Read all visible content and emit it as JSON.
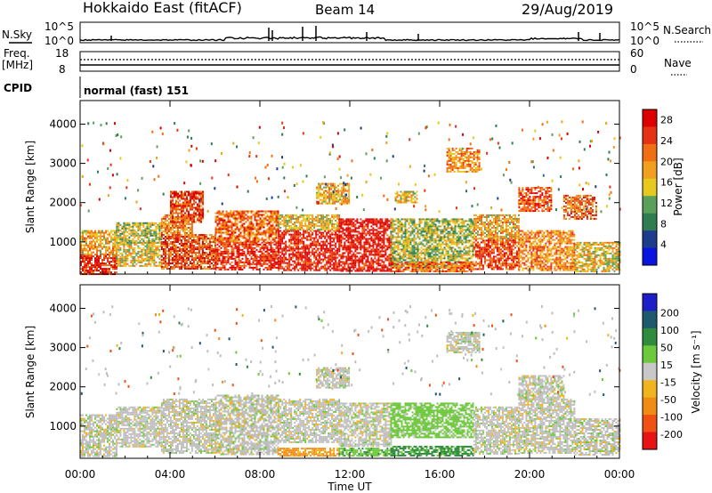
{
  "header": {
    "radar": "Hokkaido East (fitACF)",
    "beam": "Beam 14",
    "date": "29/Aug/2019"
  },
  "strips": {
    "nsky_label": "N.Sky",
    "nsky_ticks": [
      "10^5",
      "10^0"
    ],
    "nsearch_label": "N.Search",
    "freq_label_1": "Freq.",
    "freq_label_2": "[MHz]",
    "freq_ticks": [
      "18",
      "8"
    ],
    "nave_label": "Nave",
    "nave_ticks": [
      "60",
      "0"
    ],
    "cpid_label": "CPID",
    "cpid_text": "normal (fast) 151"
  },
  "colors": {
    "power_scale": [
      "#0a14e0",
      "#1e3c8c",
      "#2e7d52",
      "#5aa05a",
      "#e6c81e",
      "#f0a01e",
      "#f06e14",
      "#e63214",
      "#dc0000"
    ],
    "velocity_scale": [
      "#1e1ec8",
      "#1e5a6e",
      "#2e8c3c",
      "#6ec83c",
      "#c8c8c8",
      "#f0b41e",
      "#f08c14",
      "#f05014",
      "#e61414"
    ],
    "ground_scatter": "#bebebe"
  },
  "chart_data": [
    {
      "type": "heatmap",
      "name": "power",
      "xlabel": "",
      "ylabel": "Slant Range [km]",
      "x_ticks": [
        "00:00",
        "04:00",
        "08:00",
        "12:00",
        "16:00",
        "20:00",
        "00:00"
      ],
      "xlim_hours": [
        0,
        24
      ],
      "ylim_km": [
        180,
        4600
      ],
      "y_ticks": [
        1000,
        2000,
        3000,
        4000
      ],
      "colorbar": {
        "label": "Power [dB]",
        "ticks": [
          4,
          8,
          12,
          16,
          20,
          24,
          28
        ],
        "range": [
          0,
          30
        ]
      },
      "regions": [
        {
          "t": [
            0.0,
            1.6
          ],
          "r": [
            200,
            700
          ],
          "db": 26
        },
        {
          "t": [
            0.0,
            1.6
          ],
          "r": [
            700,
            1300
          ],
          "db": 18
        },
        {
          "t": [
            1.6,
            3.6
          ],
          "r": [
            400,
            1000
          ],
          "db": 16
        },
        {
          "t": [
            1.6,
            3.6
          ],
          "r": [
            1000,
            1500
          ],
          "db": 14
        },
        {
          "t": [
            3.6,
            6.0
          ],
          "r": [
            300,
            1200
          ],
          "db": 24
        },
        {
          "t": [
            3.6,
            5.0
          ],
          "r": [
            1200,
            1700
          ],
          "db": 20
        },
        {
          "t": [
            6.0,
            8.8
          ],
          "r": [
            300,
            1000
          ],
          "db": 26
        },
        {
          "t": [
            6.0,
            8.8
          ],
          "r": [
            1000,
            1800
          ],
          "db": 22
        },
        {
          "t": [
            8.8,
            11.5
          ],
          "r": [
            300,
            1300
          ],
          "db": 27
        },
        {
          "t": [
            8.8,
            11.5
          ],
          "r": [
            1300,
            1700
          ],
          "db": 16
        },
        {
          "t": [
            11.5,
            13.8
          ],
          "r": [
            250,
            1600
          ],
          "db": 28
        },
        {
          "t": [
            13.8,
            17.5
          ],
          "r": [
            350,
            1600
          ],
          "db": 14
        },
        {
          "t": [
            13.8,
            17.5
          ],
          "r": [
            250,
            500
          ],
          "db": 22
        },
        {
          "t": [
            17.5,
            19.5
          ],
          "r": [
            300,
            1100
          ],
          "db": 24
        },
        {
          "t": [
            17.5,
            19.5
          ],
          "r": [
            1100,
            1700
          ],
          "db": 18
        },
        {
          "t": [
            19.5,
            22.0
          ],
          "r": [
            300,
            1300
          ],
          "db": 20
        },
        {
          "t": [
            19.5,
            21.0
          ],
          "r": [
            1800,
            2400
          ],
          "db": 24
        },
        {
          "t": [
            22.0,
            24.0
          ],
          "r": [
            250,
            1000
          ],
          "db": 16
        },
        {
          "t": [
            21.5,
            23.0
          ],
          "r": [
            1600,
            2200
          ],
          "db": 22
        },
        {
          "t": [
            10.5,
            12.0
          ],
          "r": [
            2000,
            2500
          ],
          "db": 18
        },
        {
          "t": [
            16.3,
            17.8
          ],
          "r": [
            2800,
            3400
          ],
          "db": 20
        },
        {
          "t": [
            14.0,
            15.0
          ],
          "r": [
            2000,
            2300
          ],
          "db": 16
        },
        {
          "t": [
            4.0,
            5.5
          ],
          "r": [
            1500,
            2300
          ],
          "db": 24
        }
      ]
    },
    {
      "type": "heatmap",
      "name": "velocity",
      "xlabel": "Time UT",
      "ylabel": "Slant Range [km]",
      "x_ticks": [
        "00:00",
        "04:00",
        "08:00",
        "12:00",
        "16:00",
        "20:00",
        "00:00"
      ],
      "xlim_hours": [
        0,
        24
      ],
      "ylim_km": [
        180,
        4600
      ],
      "y_ticks": [
        1000,
        2000,
        3000,
        4000
      ],
      "colorbar": {
        "label": "Velocity [m s⁻¹]",
        "ticks": [
          "200",
          "100",
          "50",
          "15",
          "-15",
          "-50",
          "-100",
          "-200"
        ],
        "range": [
          -250,
          250
        ]
      },
      "regions": [
        {
          "t": [
            0.0,
            1.6
          ],
          "r": [
            250,
            1300
          ],
          "v": 0
        },
        {
          "t": [
            1.6,
            3.6
          ],
          "r": [
            500,
            1500
          ],
          "v": 0
        },
        {
          "t": [
            3.6,
            6.0
          ],
          "r": [
            300,
            1700
          ],
          "v": 0
        },
        {
          "t": [
            6.0,
            8.8
          ],
          "r": [
            300,
            1800
          ],
          "v": 0
        },
        {
          "t": [
            8.8,
            11.5
          ],
          "r": [
            600,
            1700
          ],
          "v": 0
        },
        {
          "t": [
            8.8,
            11.5
          ],
          "r": [
            250,
            450
          ],
          "v": -60
        },
        {
          "t": [
            11.5,
            13.8
          ],
          "r": [
            500,
            1600
          ],
          "v": 0
        },
        {
          "t": [
            11.5,
            13.8
          ],
          "r": [
            250,
            450
          ],
          "v": 40
        },
        {
          "t": [
            13.8,
            17.5
          ],
          "r": [
            700,
            1600
          ],
          "v": 30
        },
        {
          "t": [
            13.8,
            17.5
          ],
          "r": [
            250,
            500
          ],
          "v": 60
        },
        {
          "t": [
            17.5,
            19.5
          ],
          "r": [
            300,
            1500
          ],
          "v": 0
        },
        {
          "t": [
            19.5,
            22.0
          ],
          "r": [
            300,
            1700
          ],
          "v": 0
        },
        {
          "t": [
            22.0,
            24.0
          ],
          "r": [
            250,
            1200
          ],
          "v": 0
        },
        {
          "t": [
            10.5,
            12.0
          ],
          "r": [
            2000,
            2500
          ],
          "v": 0
        },
        {
          "t": [
            16.3,
            17.8
          ],
          "r": [
            2900,
            3400
          ],
          "v": 0
        },
        {
          "t": [
            19.5,
            21.5
          ],
          "r": [
            1700,
            2300
          ],
          "v": 0
        }
      ]
    }
  ]
}
